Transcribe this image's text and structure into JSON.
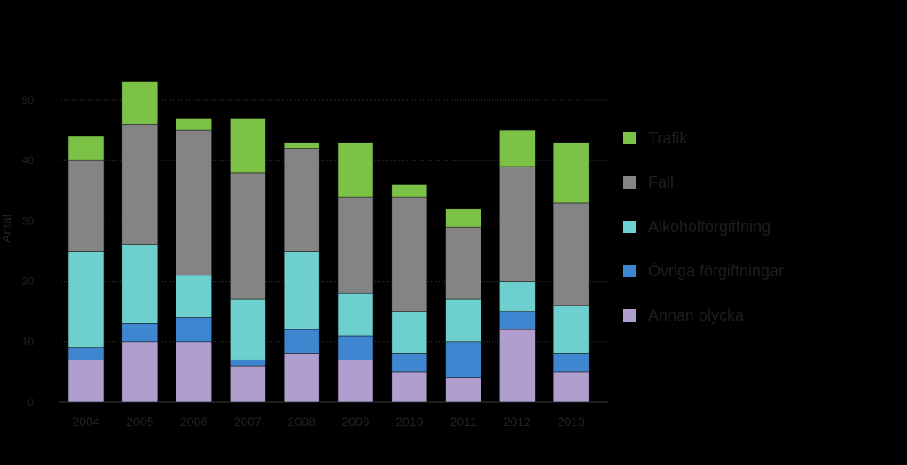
{
  "chart_data": {
    "type": "bar",
    "stacked": true,
    "title": "",
    "xlabel": "",
    "ylabel": "Antal",
    "ylim": [
      0,
      50
    ],
    "yticks": [
      0,
      10,
      20,
      30,
      40,
      50
    ],
    "grid": true,
    "legend_position": "right",
    "categories": [
      "2004",
      "2005",
      "2006",
      "2007",
      "2008",
      "2009",
      "2010",
      "2011",
      "2012",
      "2013"
    ],
    "series": [
      {
        "name": "Annan olycka",
        "color": "#b09ecf",
        "values": [
          7,
          10,
          10,
          6,
          8,
          7,
          5,
          4,
          12,
          5
        ]
      },
      {
        "name": "Övriga förgiftningar",
        "color": "#3f86d0",
        "values": [
          2,
          3,
          4,
          1,
          4,
          4,
          3,
          6,
          3,
          3
        ]
      },
      {
        "name": "Alkoholförgiftning",
        "color": "#6dd0cf",
        "values": [
          16,
          13,
          7,
          10,
          13,
          7,
          7,
          7,
          5,
          8
        ]
      },
      {
        "name": "Fall",
        "color": "#848484",
        "values": [
          15,
          20,
          24,
          21,
          17,
          16,
          19,
          12,
          19,
          17
        ]
      },
      {
        "name": "Trafik",
        "color": "#7cc247",
        "values": [
          4,
          7,
          2,
          9,
          1,
          9,
          2,
          3,
          6,
          10
        ]
      }
    ]
  }
}
